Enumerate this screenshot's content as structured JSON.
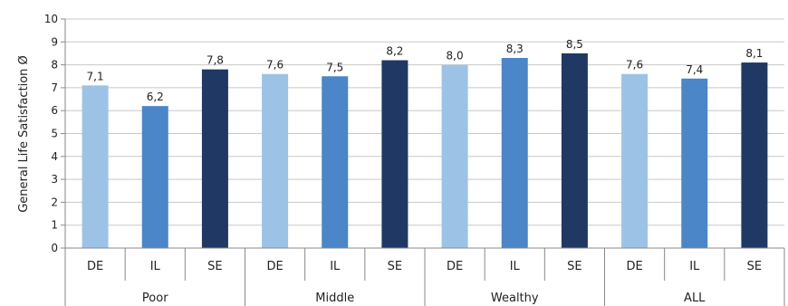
{
  "chart_data": {
    "type": "bar",
    "ylabel": "General Life Satisfaction Ø",
    "ylim": [
      0,
      10
    ],
    "yticks": [
      0,
      1,
      2,
      3,
      4,
      5,
      6,
      7,
      8,
      9,
      10
    ],
    "grid": true,
    "groups": [
      "Poor",
      "Middle",
      "Wealthy",
      "ALL"
    ],
    "categories": [
      "DE",
      "IL",
      "SE",
      "DE",
      "IL",
      "SE",
      "DE",
      "IL",
      "SE",
      "DE",
      "IL",
      "SE"
    ],
    "values": [
      7.1,
      6.2,
      7.8,
      7.6,
      7.5,
      8.2,
      8.0,
      8.3,
      8.5,
      7.6,
      7.4,
      8.1
    ],
    "value_labels": [
      "7,1",
      "6,2",
      "7,8",
      "7,6",
      "7,5",
      "8,2",
      "8,0",
      "8,3",
      "8,5",
      "7,6",
      "7,4",
      "8,1"
    ],
    "colors": {
      "DE": "#9cc3e6",
      "IL": "#4a86c8",
      "SE": "#1f3864"
    }
  }
}
